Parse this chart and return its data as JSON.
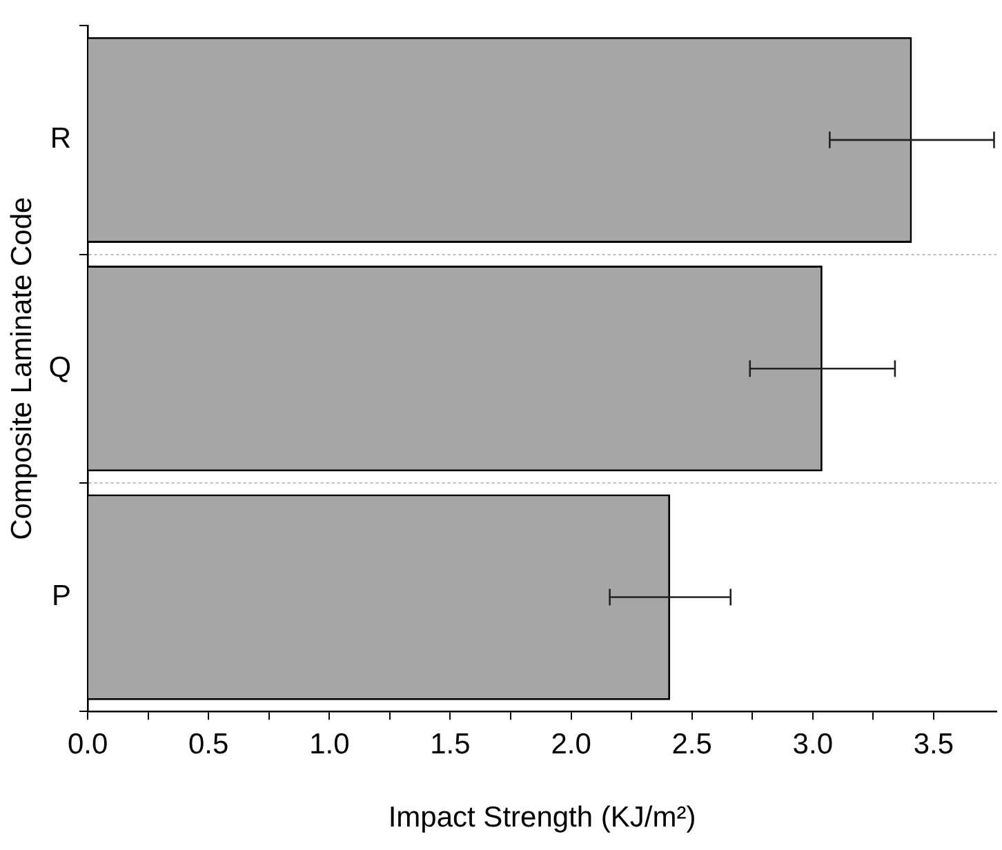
{
  "chart_data": {
    "type": "bar",
    "orientation": "horizontal",
    "categories": [
      "R",
      "Q",
      "P"
    ],
    "values": [
      3.41,
      3.04,
      2.41
    ],
    "errors": [
      0.34,
      0.3,
      0.25
    ],
    "color": "#a6a6a6",
    "xlabel": "Impact Strength (KJ/m²)",
    "ylabel": "Composite Laminate Code",
    "xlim": [
      0,
      3.76
    ],
    "xticks": [
      {
        "value": 0,
        "label": "0.0"
      },
      {
        "value": 0.25,
        "label": null
      },
      0.5,
      {
        "value": 0.75,
        "label": null
      },
      {
        "value": 1,
        "label": "1.0"
      },
      {
        "value": 1.25,
        "label": null
      },
      1.5,
      {
        "value": 1.75,
        "label": null
      },
      {
        "value": 2,
        "label": "2.0"
      },
      {
        "value": 2.25,
        "label": null
      },
      2.5,
      {
        "value": 2.75,
        "label": null
      },
      {
        "value": 3,
        "label": "3.0"
      },
      {
        "value": 3.25,
        "label": null
      },
      3.5
    ],
    "grid": "y",
    "legend": false
  }
}
